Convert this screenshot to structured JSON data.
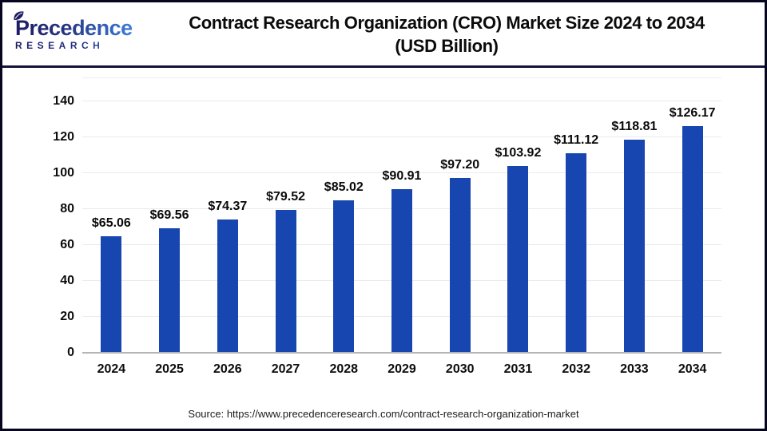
{
  "header": {
    "logo": {
      "word": "Precedence",
      "sub": "RESEARCH"
    },
    "title_line1": "Contract Research Organization (CRO) Market Size 2024 to 2034",
    "title_line2": "(USD Billion)"
  },
  "chart_data": {
    "type": "bar",
    "title": "Contract Research Organization (CRO) Market Size 2024 to 2034 (USD Billion)",
    "categories": [
      "2024",
      "2025",
      "2026",
      "2027",
      "2028",
      "2029",
      "2030",
      "2031",
      "2032",
      "2033",
      "2034"
    ],
    "values": [
      65.06,
      69.56,
      74.37,
      79.52,
      85.02,
      90.91,
      97.2,
      103.92,
      111.12,
      118.81,
      126.17
    ],
    "value_labels": [
      "$65.06",
      "$69.56",
      "$74.37",
      "$79.52",
      "$85.02",
      "$90.91",
      "$97.20",
      "$103.92",
      "$111.12",
      "$118.81",
      "$126.17"
    ],
    "xlabel": "",
    "ylabel": "",
    "ylim": [
      0,
      140
    ],
    "yticks": [
      0,
      20,
      40,
      60,
      80,
      100,
      120,
      140
    ],
    "grid": true,
    "legend": "none",
    "bar_color": "#1846b0"
  },
  "colors": {
    "bar": "#1846b0",
    "gridline": "#ebebeb",
    "baseline": "#b5b5b5",
    "divider": "#12123c",
    "frame_border": "#06061f",
    "logo_dark": "#1e1b63",
    "logo_light": "#3c7cd8"
  },
  "footer": {
    "source": "Source: https://www.precedenceresearch.com/contract-research-organization-market"
  }
}
